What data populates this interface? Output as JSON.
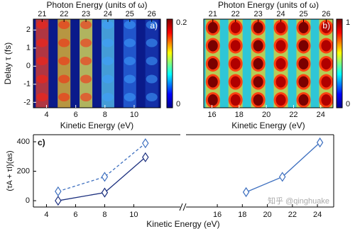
{
  "chart_data": [
    {
      "type": "heatmap",
      "panel_label": "a)",
      "top_axis_label": "Photon Energy (units of ω)",
      "xlabel": "Kinetic Energy (eV)",
      "ylabel": "Delay τ (fs)",
      "xlim": [
        3.1,
        11.8
      ],
      "xticks": [
        4,
        6,
        8,
        10
      ],
      "top_xlim": [
        20.6,
        26.4
      ],
      "top_xticks": [
        21,
        22,
        23,
        24,
        25,
        26
      ],
      "ylim": [
        -2.3,
        2.6
      ],
      "yticks": [
        -2,
        -1,
        0,
        1,
        2
      ],
      "clim": [
        0,
        0.2
      ],
      "cticks": [
        0,
        0.2
      ]
    },
    {
      "type": "heatmap",
      "panel_label": "b)",
      "top_axis_label": "Photon Energy (units of ω)",
      "xlabel": "Kinetic Energy (eV)",
      "xlim": [
        15.4,
        24.9
      ],
      "xticks": [
        16,
        18,
        20,
        22,
        24
      ],
      "top_xlim": [
        20.6,
        26.3
      ],
      "top_xticks": [
        21,
        22,
        23,
        24,
        25,
        26
      ],
      "ylim": [
        -2.3,
        2.6
      ],
      "clim": [
        0,
        1
      ],
      "cticks": [
        0,
        1
      ]
    },
    {
      "type": "line",
      "panel_label": "c)",
      "ylabel": "(τA + τI)(as)",
      "xlabel": "Kinetic Energy (eV)",
      "xlim": [
        3.1,
        13.2
      ],
      "xticks": [
        4,
        6,
        8,
        10
      ],
      "ylim": [
        -43,
        448
      ],
      "yticks": [
        0,
        200,
        400
      ],
      "x": [
        4.8,
        8.0,
        10.8
      ],
      "series": [
        {
          "color": "#1b2f7e",
          "dash": false,
          "values": [
            0,
            55,
            295
          ]
        },
        {
          "color": "#3d6fbf",
          "dash": true,
          "values": [
            63,
            162,
            390
          ]
        }
      ]
    },
    {
      "type": "line",
      "annotation": "知乎 @qinghuake",
      "xlim": [
        13.5,
        25.3
      ],
      "xticks": [
        16,
        18,
        20,
        22,
        24
      ],
      "ylim": [
        -43,
        448
      ],
      "x": [
        18.3,
        21.2,
        24.2
      ],
      "series": [
        {
          "color": "#3d6fbf",
          "dash": false,
          "values": [
            58,
            162,
            395
          ]
        }
      ]
    }
  ]
}
